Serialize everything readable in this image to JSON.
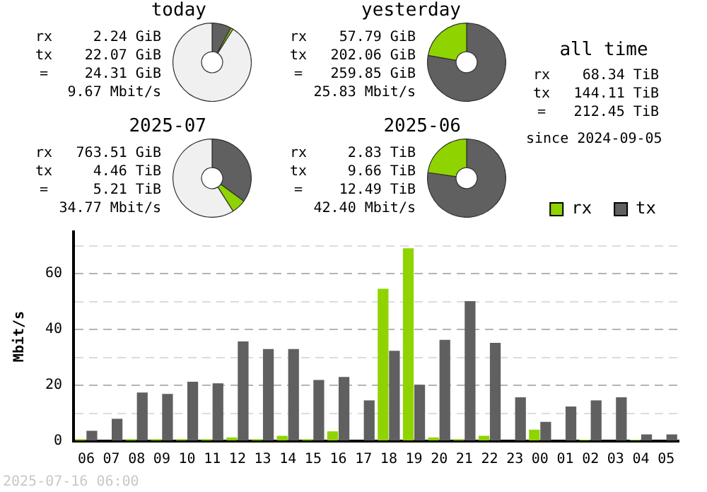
{
  "chart_data": [
    {
      "type": "donut",
      "title": "today",
      "categories": [
        null,
        null,
        null
      ],
      "values": [
        8,
        1,
        91
      ],
      "colors": [
        "#606060",
        "#8fd400",
        "#f0f0f0"
      ],
      "legend": false,
      "annotations": [
        "rx",
        "2.24 GiB",
        "tx",
        "22.07 GiB",
        "=",
        "24.31 GiB",
        "9.67 Mbit/s"
      ]
    },
    {
      "type": "donut",
      "title": "yesterday",
      "categories": [
        null,
        null
      ],
      "values": [
        77.8,
        22.2
      ],
      "colors": [
        "#606060",
        "#8fd400"
      ],
      "legend": false,
      "annotations": [
        "rx",
        "57.79 GiB",
        "tx",
        "202.06 GiB",
        "=",
        "259.85 GiB",
        "25.83 Mbit/s"
      ]
    },
    {
      "type": "other",
      "title": "all time",
      "annotations": [
        "rx",
        "68.34 TiB",
        "tx",
        "144.11 TiB",
        "=",
        "212.45 TiB",
        "since 2024-09-05"
      ]
    },
    {
      "type": "donut",
      "title": "2025-07",
      "categories": [
        null,
        null,
        null
      ],
      "values": [
        35,
        6,
        59
      ],
      "colors": [
        "#606060",
        "#8fd400",
        "#f0f0f0"
      ],
      "legend": false,
      "annotations": [
        "rx",
        "763.51 GiB",
        "tx",
        "4.46 TiB",
        "=",
        "5.21 TiB",
        "34.77 Mbit/s"
      ]
    },
    {
      "type": "donut",
      "title": "2025-06",
      "categories": [
        null,
        null
      ],
      "values": [
        77.3,
        22.7
      ],
      "colors": [
        "#606060",
        "#8fd400"
      ],
      "legend": false,
      "annotations": [
        "rx",
        "2.83 TiB",
        "tx",
        "9.66 TiB",
        "=",
        "12.49 TiB",
        "42.40 Mbit/s"
      ]
    },
    {
      "type": "bar",
      "ylabel": "Mbit/s",
      "categories": [
        "06",
        "07",
        "08",
        "09",
        "10",
        "11",
        "12",
        "13",
        "14",
        "15",
        "16",
        "17",
        "18",
        "19",
        "20",
        "21",
        "22",
        "23",
        "00",
        "01",
        "02",
        "03",
        "04",
        "05"
      ],
      "series": [
        {
          "name": "rx",
          "color": "#8fd400",
          "values": [
            0.7,
            0,
            0.7,
            0.7,
            0.7,
            0.7,
            1.3,
            0.7,
            1.9,
            0.7,
            3.5,
            0,
            54.6,
            69.1,
            1.3,
            0.7,
            1.9,
            0,
            4.1,
            0,
            0.5,
            0,
            0.5,
            0
          ]
        },
        {
          "name": "tx",
          "color": "#606060",
          "values": [
            3.7,
            8.0,
            17.4,
            16.9,
            21.3,
            20.7,
            35.7,
            33.0,
            33.0,
            21.9,
            23.0,
            14.6,
            32.4,
            20.2,
            36.3,
            50.2,
            35.2,
            15.7,
            6.9,
            12.4,
            14.6,
            15.7,
            2.4,
            2.4
          ]
        }
      ],
      "ylim": [
        0,
        75
      ],
      "yticks": [
        0,
        {
          "value": 10,
          "label": null
        },
        20,
        {
          "value": 30,
          "label": null
        },
        40,
        {
          "value": 50,
          "label": null
        },
        60,
        {
          "value": 70,
          "label": null
        }
      ],
      "grid": "y",
      "legend": "top right",
      "annotations": [
        "2025-07-16 06:00"
      ]
    }
  ]
}
